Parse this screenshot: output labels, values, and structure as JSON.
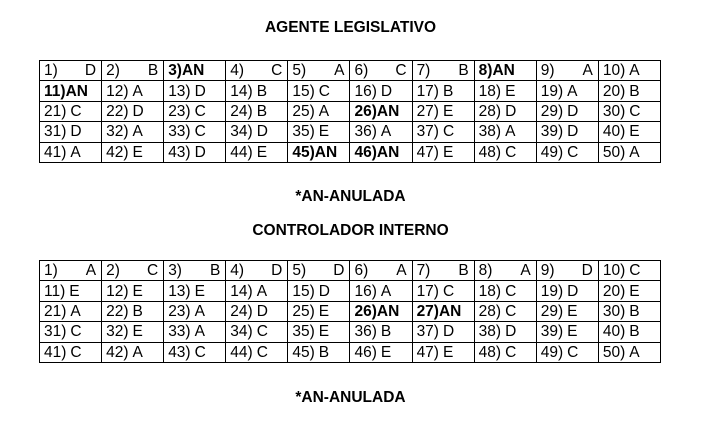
{
  "sections": [
    {
      "title": "AGENTE LEGISLATIVO",
      "note": "*AN-ANULADA",
      "answers": [
        "D",
        "B",
        "AN",
        "C",
        "A",
        "C",
        "B",
        "AN",
        "A",
        "A",
        "AN",
        "A",
        "D",
        "B",
        "C",
        "D",
        "B",
        "E",
        "A",
        "B",
        "C",
        "D",
        "C",
        "B",
        "A",
        "AN",
        "E",
        "D",
        "D",
        "C",
        "D",
        "A",
        "C",
        "D",
        "E",
        "A",
        "C",
        "A",
        "D",
        "E",
        "A",
        "E",
        "D",
        "E",
        "AN",
        "AN",
        "E",
        "C",
        "C",
        "A"
      ]
    },
    {
      "title": "CONTROLADOR INTERNO",
      "note": "*AN-ANULADA",
      "answers": [
        "A",
        "C",
        "B",
        "D",
        "D",
        "A",
        "B",
        "A",
        "D",
        "C",
        "E",
        "E",
        "E",
        "A",
        "D",
        "A",
        "C",
        "C",
        "D",
        "E",
        "A",
        "B",
        "A",
        "D",
        "E",
        "AN",
        "AN",
        "C",
        "E",
        "B",
        "C",
        "E",
        "A",
        "C",
        "E",
        "B",
        "D",
        "D",
        "E",
        "B",
        "C",
        "A",
        "C",
        "C",
        "B",
        "E",
        "E",
        "C",
        "C",
        "A"
      ]
    }
  ]
}
